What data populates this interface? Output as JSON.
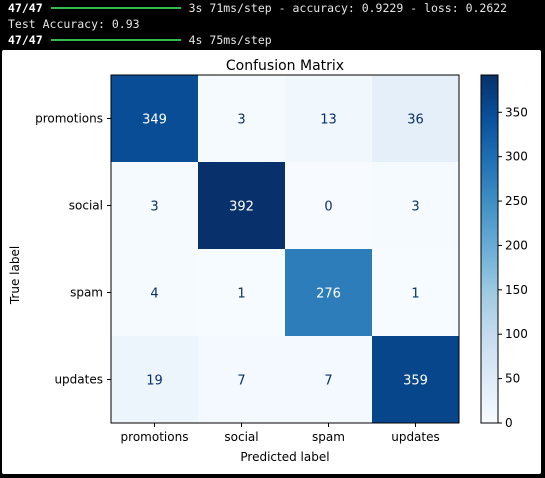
{
  "console": {
    "line1": {
      "step": "47/47",
      "text": "3s 71ms/step - accuracy: 0.9229 - loss: 0.2622"
    },
    "line2": {
      "text": "Test Accuracy: 0.93"
    },
    "line3": {
      "step": "47/47",
      "text": "4s 75ms/step"
    },
    "progress_bar_fraction": 1.0,
    "progress_bar_color": "#2fbf4a"
  },
  "chart_data": {
    "type": "heatmap",
    "title": "Confusion Matrix",
    "xlabel": "Predicted label",
    "ylabel": "True label",
    "x_categories": [
      "promotions",
      "social",
      "spam",
      "updates"
    ],
    "y_categories": [
      "promotions",
      "social",
      "spam",
      "updates"
    ],
    "values": [
      [
        349,
        3,
        13,
        36
      ],
      [
        3,
        392,
        0,
        3
      ],
      [
        4,
        1,
        276,
        1
      ],
      [
        19,
        7,
        7,
        359
      ]
    ],
    "colormap": "Blues",
    "colorbar": {
      "min": 0,
      "max": 392,
      "ticks": [
        0,
        50,
        100,
        150,
        200,
        250,
        300,
        350
      ]
    },
    "grid": false
  }
}
